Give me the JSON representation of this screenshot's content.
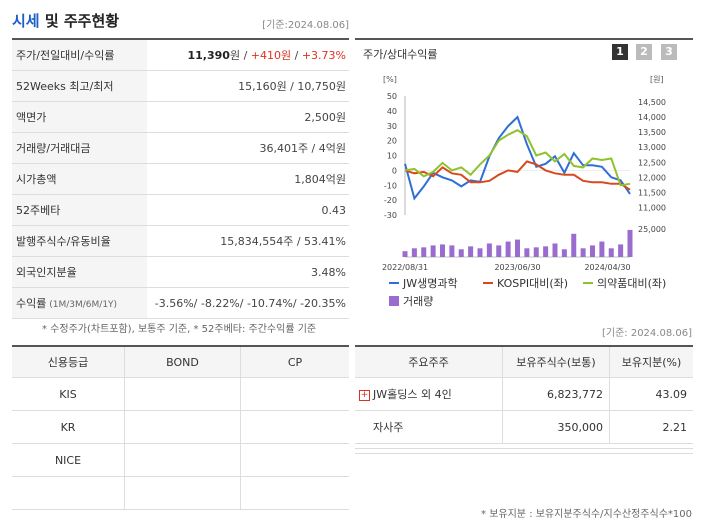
{
  "header": {
    "title_hl": "시세",
    "title_rest": " 및 주주현황",
    "asof": "[기준:2024.08.06]"
  },
  "price": {
    "rows": [
      {
        "label": "52Weeks 최고/최저",
        "value": "15,160원 / 10,750원"
      },
      {
        "label": "액면가",
        "value": "2,500원"
      },
      {
        "label": "거래량/거래대금",
        "value": "36,401주 / 4억원"
      },
      {
        "label": "시가총액",
        "value": "1,804억원"
      },
      {
        "label": "52주베타",
        "value": "0.43"
      },
      {
        "label": "발행주식수/유동비율",
        "value": "15,834,554주 / 53.41%"
      },
      {
        "label": "외국인지분율",
        "value": "3.48%"
      }
    ],
    "first_label": "주가/전일대비/수익률",
    "first_price": "11,390",
    "first_unit": "원",
    "first_sep": " / ",
    "first_change": "+410원",
    "first_rate": "+3.73%",
    "ret_label": "수익률",
    "ret_sub": " (1M/3M/6M/1Y)",
    "ret_value": "-3.56%/ -8.22%/ -10.74%/ -20.35%"
  },
  "notes": {
    "price_note": "* 수정주가(차트포함), 보통주 기준, * 52주베타: 주간수익률 기준",
    "share_note": "* 보유지분 : 보유지분주식수/지수산정주식수*100",
    "asof2": "[기준: 2024.08.06]"
  },
  "chart": {
    "title": "주가/상대수익률",
    "pages": [
      "1",
      "2",
      "3"
    ],
    "left_unit": "[%]",
    "right_unit": "[원]",
    "vol_max_label": "25,000",
    "legend": {
      "jw": "JW생명과학",
      "kospi": "KOSPI대비(좌)",
      "pharma": "의약품대비(좌)",
      "volume": "거래량"
    },
    "colors": {
      "jw": "#2f6fd6",
      "kospi": "#d64a1e",
      "pharma": "#8fc22c",
      "volume": "#9b6cd0"
    }
  },
  "chart_data": {
    "type": "line",
    "x_ticks": [
      "2022/08/31",
      "2023/06/30",
      "2024/04/30"
    ],
    "y_left": {
      "ticks": [
        50,
        40,
        30,
        20,
        10,
        0,
        -10,
        -20,
        -30
      ],
      "ylim": [
        -30,
        50
      ]
    },
    "y_right": {
      "ticks": [
        14500,
        14000,
        13500,
        13000,
        12500,
        12000,
        11500,
        11000
      ],
      "ylim": [
        10750,
        14700
      ]
    },
    "series": [
      {
        "name": "JW생명과학",
        "axis": "right",
        "values": [
          12450,
          11300,
          11700,
          12150,
          12000,
          11900,
          11700,
          11900,
          11850,
          12700,
          13300,
          13700,
          14000,
          13100,
          12350,
          12450,
          12700,
          12150,
          12800,
          12400,
          12400,
          12350,
          12000,
          11900,
          11450
        ]
      },
      {
        "name": "KOSPI대비(좌)",
        "axis": "left",
        "values": [
          0,
          -2,
          -1,
          -4,
          2,
          -2,
          -3,
          -8,
          -8,
          -7,
          -3,
          0,
          -1,
          6,
          4,
          0,
          -2,
          -3,
          -3,
          -7,
          -8,
          -8,
          -9,
          -9,
          -13
        ]
      },
      {
        "name": "의약품대비(좌)",
        "axis": "left",
        "values": [
          0,
          1,
          -4,
          -1,
          5,
          0,
          2,
          -3,
          4,
          10,
          20,
          24,
          27,
          23,
          10,
          12,
          6,
          11,
          3,
          2,
          8,
          7,
          8,
          -10,
          -9
        ]
      },
      {
        "name": "거래량",
        "axis": "volume",
        "values": [
          6000,
          9000,
          10000,
          12000,
          13000,
          12000,
          8000,
          11000,
          9000,
          14000,
          12000,
          16000,
          18000,
          9000,
          10000,
          11000,
          14000,
          8000,
          24000,
          9000,
          12000,
          16000,
          9000,
          13000,
          28000
        ]
      }
    ]
  },
  "credit": {
    "headers": [
      "신용등급",
      "BOND",
      "CP"
    ],
    "rows": [
      {
        "agency": "KIS",
        "bond": "",
        "cp": ""
      },
      {
        "agency": "KR",
        "bond": "",
        "cp": ""
      },
      {
        "agency": "NICE",
        "bond": "",
        "cp": ""
      },
      {
        "agency": "",
        "bond": "",
        "cp": ""
      }
    ]
  },
  "holders": {
    "headers": [
      "주요주주",
      "보유주식수(보통)",
      "보유지분(%)"
    ],
    "rows": [
      {
        "name": "JW홀딩스 외 4인",
        "shares": "6,823,772",
        "pct": "43.09"
      },
      {
        "name": "자사주",
        "shares": "350,000",
        "pct": "2.21"
      }
    ]
  }
}
